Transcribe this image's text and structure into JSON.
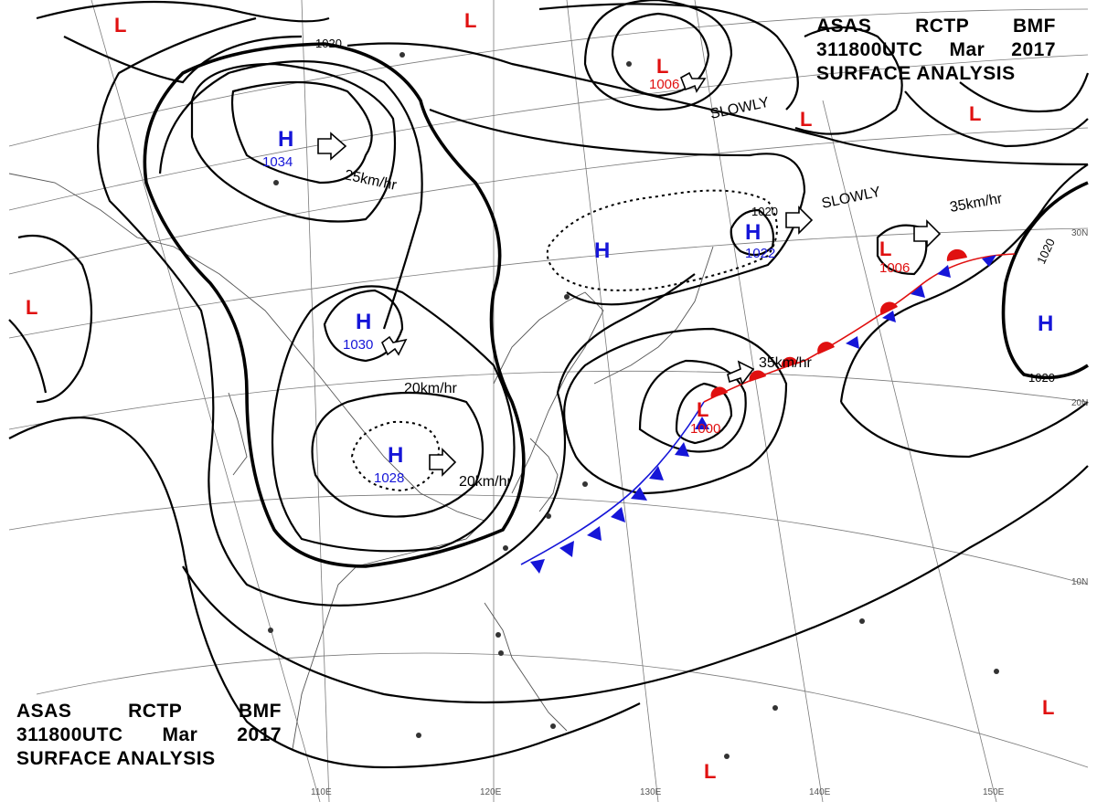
{
  "header": {
    "line1": [
      "ASAS",
      "RCTP",
      "BMF"
    ],
    "line2": [
      "311800UTC",
      "Mar",
      "2017"
    ],
    "line3": "SURFACE ANALYSIS"
  },
  "pressure_centers": [
    {
      "type": "H",
      "value": "1034"
    },
    {
      "type": "H",
      "value": "1030"
    },
    {
      "type": "H",
      "value": "1028"
    },
    {
      "type": "H",
      "value": ""
    },
    {
      "type": "H",
      "value": "1022"
    },
    {
      "type": "H",
      "value": ""
    },
    {
      "type": "L",
      "value": "1006"
    },
    {
      "type": "L",
      "value": "1006"
    },
    {
      "type": "L",
      "value": "1000"
    },
    {
      "type": "L",
      "value": ""
    }
  ],
  "isobar_labels": [
    "1020",
    "1020",
    "1020",
    "1020"
  ],
  "movement_labels": [
    "25km/hr",
    "20km/hr",
    "20km/hr",
    "35km/hr",
    "35km/hr",
    "SLOWLY",
    "SLOWLY"
  ],
  "latitude_labels": [
    "30N",
    "20N",
    "10N"
  ],
  "longitude_labels": [
    "110E",
    "120E",
    "130E",
    "140E",
    "150E"
  ],
  "colors": {
    "high": "#1515d8",
    "low": "#e01010",
    "cold_front": "#1515d8",
    "warm_front": "#e01010"
  }
}
